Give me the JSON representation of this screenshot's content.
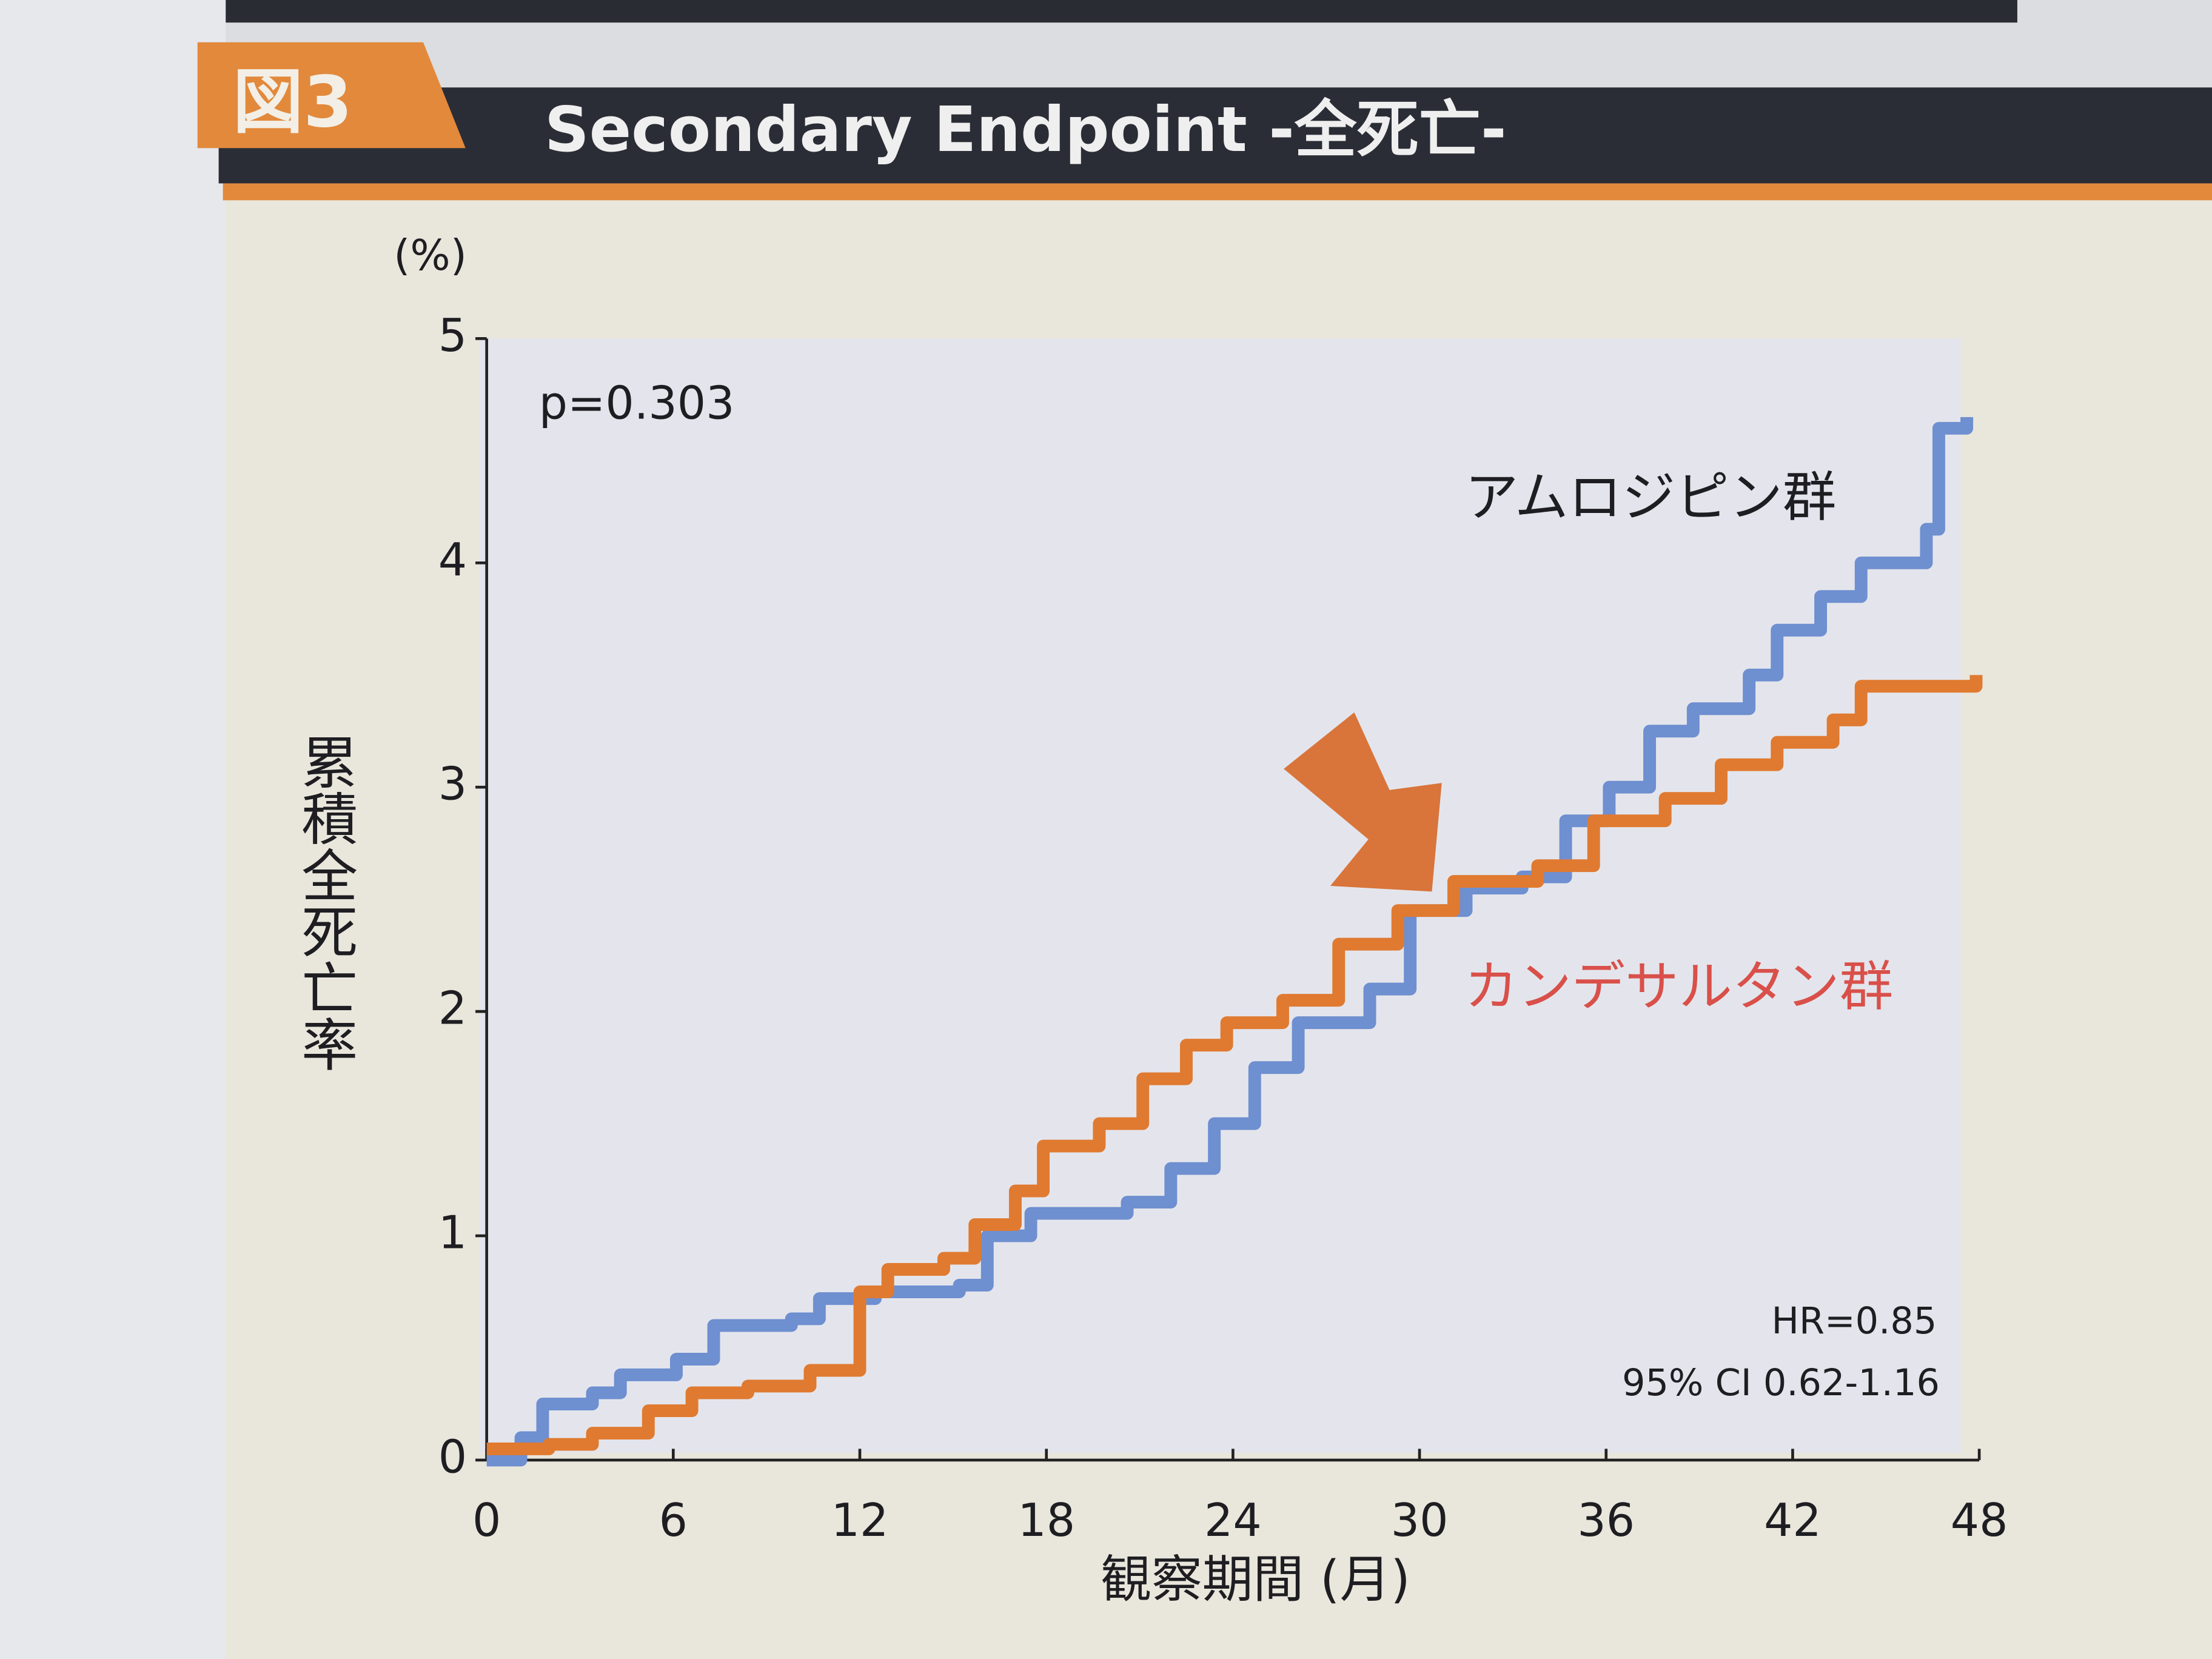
{
  "chart_data": {
    "type": "line",
    "step": true,
    "figure_label": "図3",
    "title": "Secondary Endpoint -全死亡-",
    "y_unit": "(%)",
    "ylabel": "累積全死亡率",
    "xlabel": "観察期間 (月)",
    "annotations": [
      "p=0.303",
      "HR=0.85",
      "95% CI 0.62-1.16"
    ],
    "xlim": [
      0,
      48
    ],
    "xticks": [
      0,
      6,
      12,
      18,
      24,
      30,
      36,
      42,
      48
    ],
    "ylim": [
      0,
      5
    ],
    "yticks": [
      0,
      1,
      2,
      3,
      4,
      5
    ],
    "series": [
      {
        "name": "アムロジピン群",
        "color": "#6e8fd0",
        "x": [
          0,
          1.1,
          1.8,
          3.4,
          4.3,
          6.1,
          7.3,
          9.8,
          10.7,
          12.5,
          15.2,
          16.1,
          17.5,
          20.6,
          22.0,
          23.4,
          24.7,
          26.1,
          28.4,
          29.7,
          31.5,
          33.3,
          34.7,
          36.1,
          37.4,
          38.8,
          40.6,
          41.5,
          42.9,
          44.2,
          46.3,
          46.7,
          47.6
        ],
        "values": [
          0,
          0.1,
          0.25,
          0.3,
          0.38,
          0.45,
          0.6,
          0.63,
          0.72,
          0.75,
          0.78,
          1.0,
          1.1,
          1.15,
          1.3,
          1.5,
          1.75,
          1.95,
          2.1,
          2.45,
          2.55,
          2.6,
          2.85,
          3.0,
          3.25,
          3.35,
          3.5,
          3.7,
          3.85,
          4.0,
          4.15,
          4.6,
          4.65
        ]
      },
      {
        "name": "カンデサルタン群",
        "color": "#e07a30",
        "x": [
          0,
          2.0,
          3.4,
          5.2,
          6.6,
          8.4,
          10.4,
          12.0,
          12.9,
          14.7,
          15.7,
          17.0,
          17.9,
          19.7,
          21.1,
          22.5,
          23.8,
          25.6,
          27.4,
          29.3,
          31.1,
          33.8,
          35.6,
          37.9,
          39.7,
          41.5,
          43.3,
          44.2,
          47.9
        ],
        "values": [
          0.05,
          0.07,
          0.12,
          0.22,
          0.3,
          0.33,
          0.4,
          0.75,
          0.85,
          0.9,
          1.05,
          1.2,
          1.4,
          1.5,
          1.7,
          1.85,
          1.95,
          2.05,
          2.3,
          2.45,
          2.58,
          2.65,
          2.85,
          2.95,
          3.1,
          3.2,
          3.3,
          3.45,
          3.5
        ]
      }
    ]
  }
}
